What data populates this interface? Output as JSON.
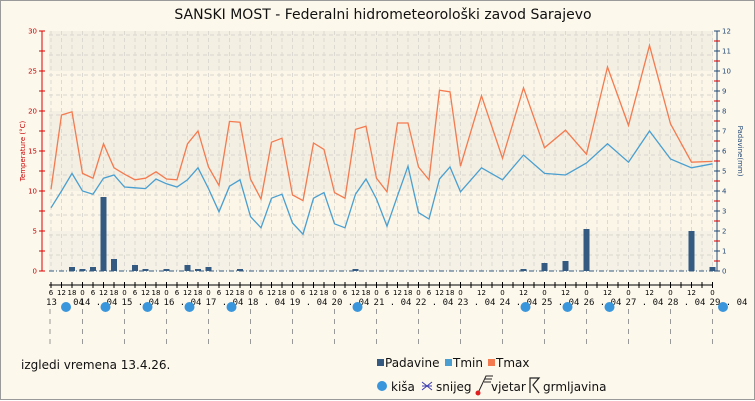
{
  "chart_data": {
    "type": "line",
    "title": "SANSKI MOST - Federalni hidrometeorološki zavod Sarajevo",
    "ylabel": "Temperature (°C)",
    "y2label": "Padavine(mm)",
    "ylim": [
      0,
      30
    ],
    "y2lim": [
      0,
      12
    ],
    "y_ticks": [
      "0",
      "5",
      "10",
      "15",
      "20",
      "25",
      "30"
    ],
    "y2_ticks": [
      "0",
      "1",
      "2",
      "3",
      "4",
      "5",
      "6",
      "7",
      "8",
      "9",
      "10",
      "11",
      "12"
    ],
    "grid": true,
    "times": [
      "13.04 06",
      "13.04 12",
      "13.04 18",
      "14.04 00",
      "14.04 06",
      "14.04 12",
      "14.04 18",
      "15.04 00",
      "15.04 06",
      "15.04 12",
      "15.04 18",
      "16.04 00",
      "16.04 06",
      "16.04 12",
      "16.04 18",
      "17.04 00",
      "17.04 06",
      "17.04 12",
      "17.04 18",
      "18.04 00",
      "18.04 06",
      "18.04 12",
      "18.04 18",
      "19.04 00",
      "19.04 06",
      "19.04 12",
      "19.04 18",
      "20.04 00",
      "20.04 06",
      "20.04 12",
      "20.04 18",
      "21.04 00",
      "21.04 06",
      "21.04 12",
      "21.04 18",
      "22.04 00",
      "22.04 06",
      "22.04 12",
      "22.04 18",
      "23.04 00",
      "23.04 12",
      "24.04 00",
      "24.04 12",
      "25.04 00",
      "25.04 12",
      "26.04 00",
      "26.04 12",
      "27.04 00",
      "27.04 12",
      "28.04 00",
      "28.04 12",
      "29.04 00"
    ],
    "series": [
      {
        "name": "Padavine",
        "axis": "right",
        "type": "bar",
        "color": "#345a82",
        "values": [
          0,
          0,
          0.2,
          0.1,
          0.2,
          3.7,
          0.6,
          0,
          0.3,
          0.1,
          0,
          0.1,
          0,
          0.3,
          0.1,
          0.2,
          0,
          0,
          0.1,
          0,
          0,
          0,
          0,
          0,
          0,
          0,
          0,
          0,
          0,
          0.1,
          0,
          0,
          0,
          0,
          0,
          0,
          0,
          0,
          0,
          0,
          0,
          0,
          0.1,
          0.4,
          0.5,
          2.1,
          0,
          0,
          0,
          0,
          2.0,
          0.2
        ]
      },
      {
        "name": "Tmin",
        "axis": "left",
        "type": "line",
        "color": "#4a9fd0",
        "values": [
          7.9,
          10,
          12.2,
          10,
          9.6,
          11.6,
          12,
          10.5,
          10.4,
          10.3,
          11.5,
          10.9,
          10.5,
          11.4,
          12.9,
          10.3,
          7.4,
          10.6,
          11.4,
          6.8,
          5.4,
          9.1,
          9.6,
          6,
          4.6,
          9.1,
          9.8,
          5.9,
          5.4,
          9.6,
          11.5,
          9,
          5.6,
          9.4,
          13.1,
          7.3,
          6.5,
          11.5,
          13,
          9.9,
          12.9,
          11.4,
          14.5,
          12.2,
          12,
          13.5,
          15.9,
          13.6,
          17.5,
          14,
          12.9,
          13.4
        ]
      },
      {
        "name": "Tmax",
        "axis": "left",
        "type": "line",
        "color": "#f47a4f",
        "values": [
          10.2,
          19.5,
          19.9,
          12.2,
          11.6,
          15.9,
          12.9,
          12.1,
          11.4,
          11.6,
          12.4,
          11.5,
          11.4,
          15.9,
          17.5,
          13,
          10.7,
          18.7,
          18.6,
          11.5,
          9,
          16.1,
          16.6,
          9.5,
          8.8,
          16,
          15.2,
          9.8,
          9.1,
          17.7,
          18.1,
          11.6,
          9.9,
          18.5,
          18.5,
          13,
          11.4,
          22.6,
          22.4,
          13.1,
          21.9,
          14.1,
          22.9,
          15.4,
          17.6,
          14.6,
          25.5,
          18.2,
          28.2,
          18.4,
          13.6,
          13.7
        ]
      }
    ],
    "x_ticks": [
      "6",
      "12",
      "18",
      "0",
      "6",
      "12",
      "18",
      "0",
      "6",
      "12",
      "18",
      "0",
      "6",
      "12",
      "18",
      "0",
      "6",
      "12",
      "18",
      "0",
      "6",
      "12",
      "18",
      "0",
      "6",
      "12",
      "18",
      "0",
      "6",
      "12",
      "18",
      "0",
      "6",
      "12",
      "18",
      "0",
      "6",
      "12",
      "18",
      "0",
      "",
      "12",
      "",
      "0",
      "",
      "12",
      "",
      "0",
      "",
      "12",
      "",
      "0",
      "",
      "12",
      "",
      "0",
      "",
      "12",
      "",
      "0",
      "",
      "12",
      "",
      "0"
    ],
    "days": [
      "13 . 04",
      "14 . 04",
      "15 . 04",
      "16 . 04",
      "17 . 04",
      "18 . 04",
      "19 . 04",
      "20 . 04",
      "21 . 04",
      "22 . 04",
      "23 . 04",
      "24 . 04",
      "25 . 04",
      "26 . 04",
      "27 . 04",
      "28 . 04",
      "29 . 04"
    ],
    "weather_symbols": [
      {
        "day": "13 . 04",
        "type": "kiša"
      },
      {
        "day": "14 . 04",
        "type": "kiša"
      },
      {
        "day": "15 . 04",
        "type": "kiša"
      },
      {
        "day": "16 . 04",
        "type": "kiša"
      },
      {
        "day": "17 . 04",
        "type": "kiša"
      },
      {
        "day": "20 . 04",
        "type": "kiša"
      },
      {
        "day": "24 . 04",
        "type": "kiša"
      },
      {
        "day": "25 . 04",
        "type": "kiša"
      },
      {
        "day": "26 . 04",
        "type": "kiša"
      },
      {
        "day": "29 . 04",
        "type": "kiša"
      }
    ],
    "legend_position": "bottom"
  },
  "legend": {
    "padavine": "Padavine",
    "tmin": "Tmin",
    "tmax": "Tmax",
    "kisa": "kiša",
    "snijeg": "snijeg",
    "vjetar": "vjetar",
    "grmljavina": "grmljavina"
  },
  "footer_note": "izgledi vremena 13.4.26.",
  "colors": {
    "axis_left": "#e00000",
    "axis_right": "#244a78",
    "rain_dot": "#3a96dc",
    "bg": "#fdf8ec"
  }
}
